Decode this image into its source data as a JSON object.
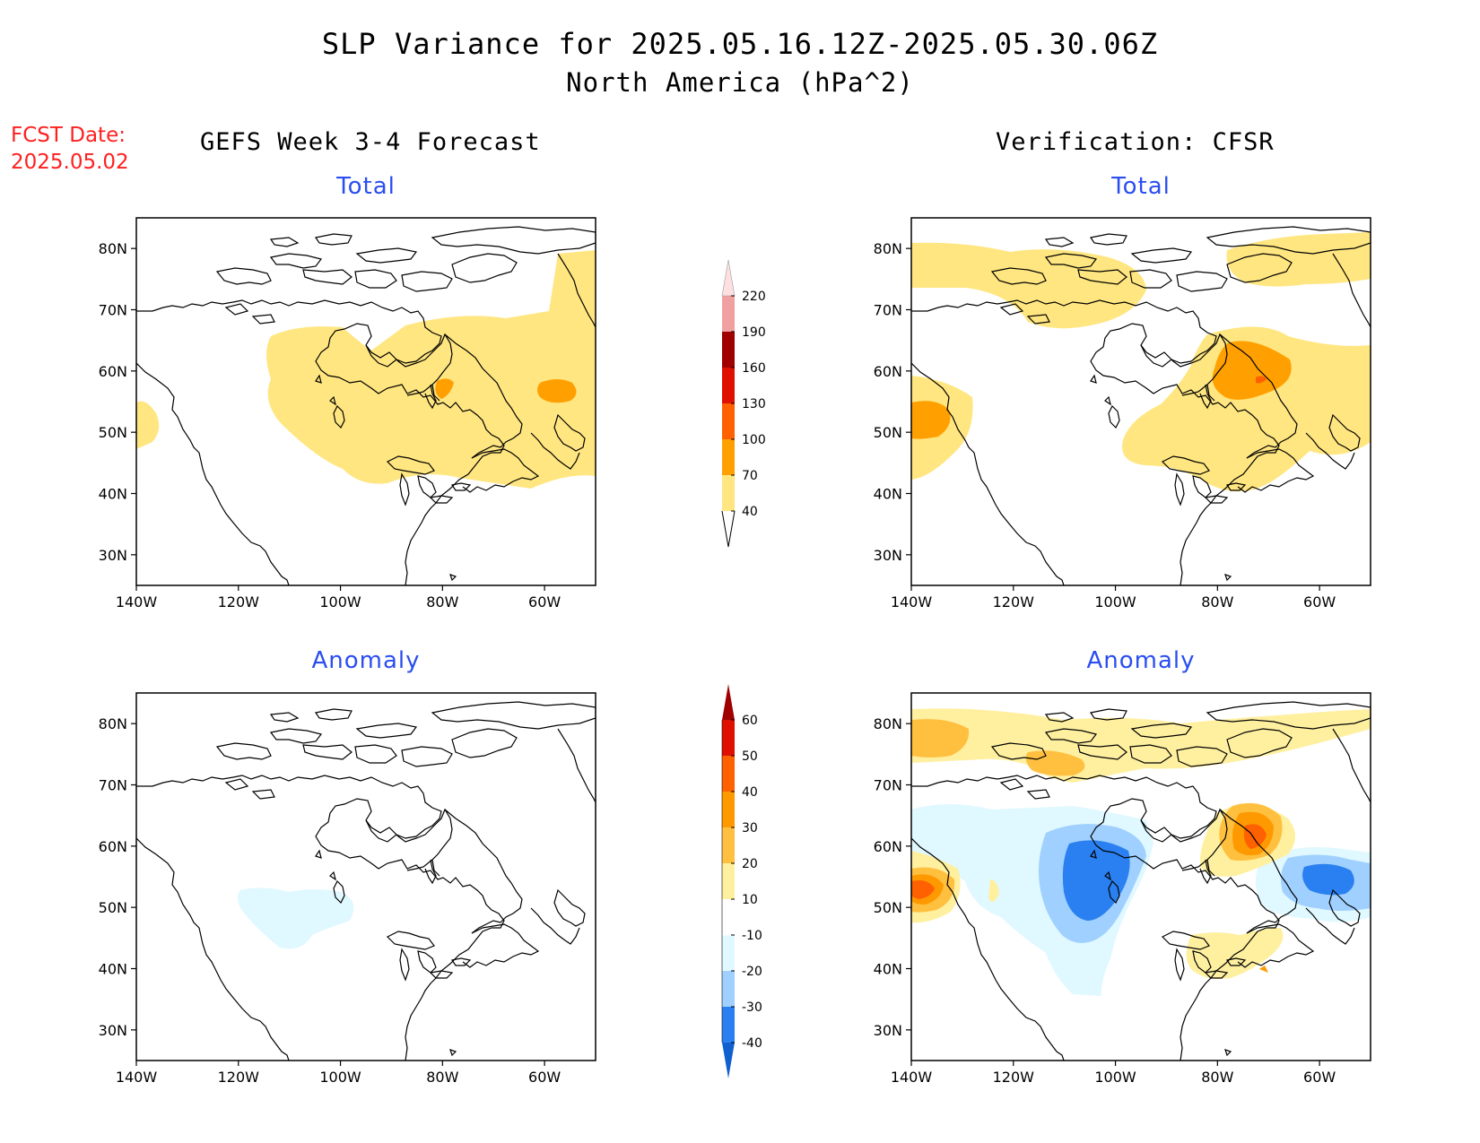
{
  "title": {
    "line1": "SLP Variance for 2025.05.16.12Z-2025.05.30.06Z",
    "line2": "North America (hPa^2)"
  },
  "fcst_date": {
    "label": "FCST Date:",
    "value": "2025.05.02"
  },
  "columns": {
    "forecast": "GEFS Week 3-4 Forecast",
    "verification": "Verification: CFSR"
  },
  "panel_titles": {
    "total": "Total",
    "anomaly": "Anomaly"
  },
  "axes": {
    "lat_labels": [
      "80N",
      "70N",
      "60N",
      "50N",
      "40N",
      "30N"
    ],
    "lon_labels": [
      "140W",
      "120W",
      "100W",
      "80W",
      "60W"
    ]
  },
  "colorbar_total": {
    "levels": [
      "40",
      "70",
      "100",
      "130",
      "160",
      "190",
      "220"
    ],
    "colors": [
      "#ffe680",
      "#ffa000",
      "#ff6000",
      "#e01000",
      "#a00000",
      "#f0a0a0",
      "#ffe0e0"
    ]
  },
  "colorbar_anomaly": {
    "levels": [
      "-40",
      "-30",
      "-20",
      "-10",
      "10",
      "20",
      "30",
      "40",
      "50",
      "60"
    ],
    "colors": [
      "#1060d0",
      "#2a80f0",
      "#a0d0ff",
      "#e0f8ff",
      "#ffffff",
      "#fff0a0",
      "#ffc040",
      "#ff9900",
      "#ff6000",
      "#e01000",
      "#a00000"
    ]
  },
  "map_extent": {
    "lon": [
      -140,
      -50
    ],
    "lat": [
      25,
      85
    ]
  },
  "colors": {
    "title_text": "#000000",
    "panel_title": "#2a4ef0",
    "fcst_date": "#ff2020"
  }
}
